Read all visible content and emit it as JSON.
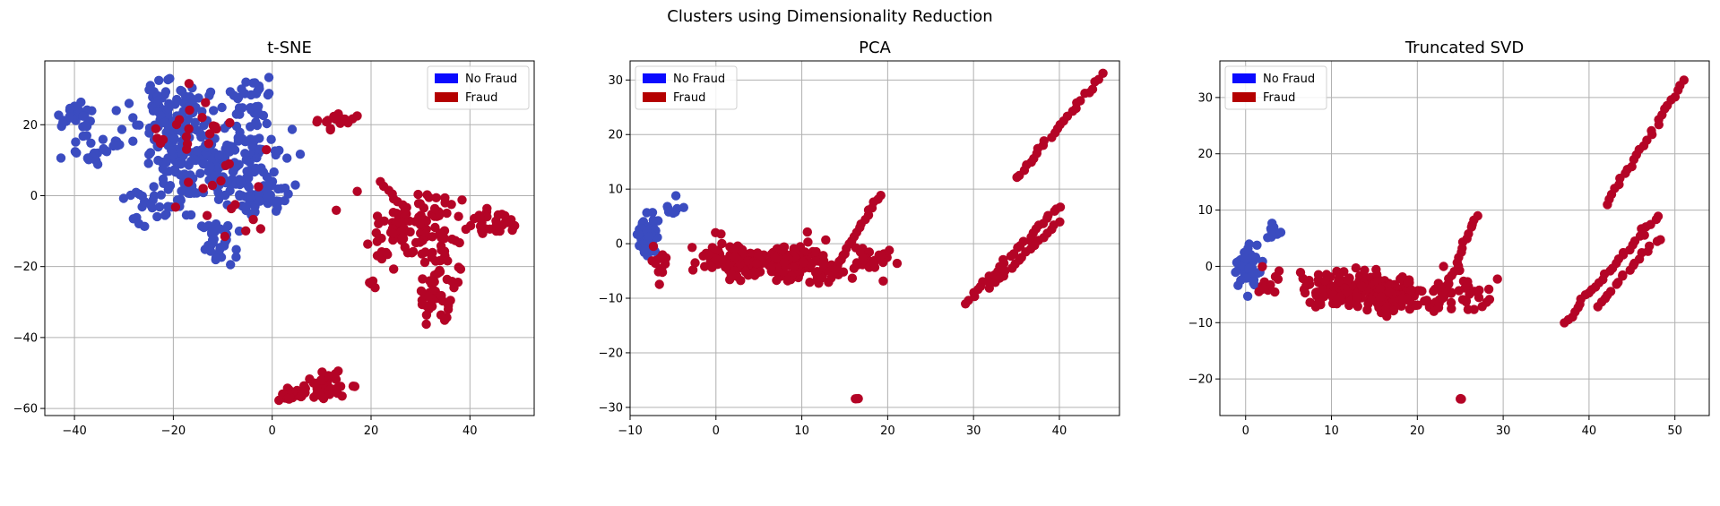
{
  "figure": {
    "suptitle": "Clusters using Dimensionality Reduction"
  },
  "colors": {
    "no_fraud": "#3b4cc0",
    "fraud": "#b40426",
    "legend_no_fraud": "#0a0aff",
    "legend_fraud": "#b40000"
  },
  "chart_data": [
    {
      "type": "scatter",
      "title": "t-SNE",
      "xlabel": "",
      "ylabel": "",
      "xlim": [
        -46,
        53
      ],
      "ylim": [
        -62,
        38
      ],
      "xticks": [
        -40,
        -20,
        0,
        20,
        40
      ],
      "yticks": [
        -60,
        -40,
        -20,
        0,
        20
      ],
      "grid": true,
      "legend": {
        "placement": "upper right",
        "entries": [
          "No Fraud",
          "Fraud"
        ]
      },
      "series": [
        {
          "name": "No Fraud",
          "clusters": [
            {
              "cx": -40,
              "cy": 22,
              "sx": 2.0,
              "sy": 2.0,
              "n": 25
            },
            {
              "cx": -35,
              "cy": 13,
              "sx": 2.5,
              "sy": 2.0,
              "n": 25
            },
            {
              "cx": -20,
              "cy": 22,
              "sx": 4.0,
              "sy": 5.0,
              "n": 120
            },
            {
              "cx": -16,
              "cy": 8,
              "sx": 5.0,
              "sy": 5.0,
              "n": 90
            },
            {
              "cx": -6,
              "cy": 10,
              "sx": 4.5,
              "sy": 6.0,
              "n": 90
            },
            {
              "cx": -3,
              "cy": 0,
              "sx": 3.0,
              "sy": 3.0,
              "n": 50
            },
            {
              "cx": -4,
              "cy": 27,
              "sx": 3.0,
              "sy": 3.0,
              "n": 30
            },
            {
              "cx": -11,
              "cy": -13,
              "sx": 2.0,
              "sy": 3.0,
              "n": 35
            },
            {
              "cx": -23,
              "cy": -2,
              "sx": 3.0,
              "sy": 3.0,
              "n": 30
            }
          ]
        },
        {
          "name": "Fraud",
          "clusters": [
            {
              "cx": -17,
              "cy": 20,
              "sx": 6.0,
              "sy": 6.0,
              "n": 22
            },
            {
              "cx": -8,
              "cy": 0,
              "sx": 5.0,
              "sy": 6.0,
              "n": 14
            },
            {
              "cx": 13,
              "cy": 21,
              "sx": 2.5,
              "sy": 1.2,
              "n": 18
            },
            {
              "cx": 30,
              "cy": -8,
              "sx": 5.0,
              "sy": 5.0,
              "n": 90
            },
            {
              "cx": 44,
              "cy": -7,
              "sx": 2.5,
              "sy": 2.0,
              "n": 30
            },
            {
              "cx": 33,
              "cy": -27,
              "sx": 2.5,
              "sy": 5.0,
              "n": 45
            },
            {
              "cx": 23,
              "cy": -13,
              "sx": 2.5,
              "sy": 3.0,
              "n": 20
            },
            {
              "cx": 4,
              "cy": -56,
              "sx": 1.3,
              "sy": 0.8,
              "n": 35
            },
            {
              "cx": 11,
              "cy": -53,
              "sx": 2.5,
              "sy": 2.0,
              "n": 35
            },
            {
              "cx": 20,
              "cy": -25,
              "sx": 0.5,
              "sy": 0.5,
              "n": 4
            }
          ],
          "lines": [
            {
              "x0": 22,
              "y0": 4,
              "x1": 27,
              "y1": -4,
              "n": 8
            }
          ]
        }
      ]
    },
    {
      "type": "scatter",
      "title": "PCA",
      "xlabel": "",
      "ylabel": "",
      "xlim": [
        -10,
        47
      ],
      "ylim": [
        -31.5,
        33.5
      ],
      "xticks": [
        -10,
        0,
        10,
        20,
        30,
        40
      ],
      "yticks": [
        -30,
        -20,
        -10,
        0,
        10,
        20,
        30
      ],
      "grid": true,
      "legend": {
        "placement": "upper left",
        "entries": [
          "No Fraud",
          "Fraud"
        ]
      },
      "series": [
        {
          "name": "No Fraud",
          "clusters": [
            {
              "cx": -8,
              "cy": 1.5,
              "sx": 0.5,
              "sy": 1.8,
              "n": 70
            },
            {
              "cx": -5,
              "cy": 7,
              "sx": 0.8,
              "sy": 1.5,
              "n": 8
            }
          ]
        },
        {
          "name": "Fraud",
          "clusters": [
            {
              "cx": -6.5,
              "cy": -3,
              "sx": 0.6,
              "sy": 1.5,
              "n": 12
            },
            {
              "cx": 3,
              "cy": -2.5,
              "sx": 2.5,
              "sy": 1.6,
              "n": 120
            },
            {
              "cx": 9,
              "cy": -3.5,
              "sx": 2.5,
              "sy": 1.6,
              "n": 120
            },
            {
              "cx": 18,
              "cy": -3,
              "sx": 1.5,
              "sy": 1.6,
              "n": 30
            },
            {
              "cx": 16.5,
              "cy": -28.5,
              "sx": 0.1,
              "sy": 0.1,
              "n": 3
            }
          ],
          "lines": [
            {
              "x0": 13,
              "y0": -7,
              "x1": 19,
              "y1": 9,
              "n": 22
            },
            {
              "x0": 35,
              "y0": 12,
              "x1": 45,
              "y1": 31,
              "n": 26
            },
            {
              "x0": 29,
              "y0": -11,
              "x1": 40,
              "y1": 7,
              "n": 30
            },
            {
              "x0": 32,
              "y0": -8,
              "x1": 40,
              "y1": 4,
              "n": 18
            }
          ]
        }
      ]
    },
    {
      "type": "scatter",
      "title": "Truncated SVD",
      "xlabel": "",
      "ylabel": "",
      "xlim": [
        -3,
        54
      ],
      "ylim": [
        -26.5,
        36.5
      ],
      "xticks": [
        0,
        10,
        20,
        30,
        40,
        50
      ],
      "yticks": [
        -20,
        -10,
        0,
        10,
        20,
        30
      ],
      "grid": true,
      "legend": {
        "placement": "upper left",
        "entries": [
          "No Fraud",
          "Fraud"
        ]
      },
      "series": [
        {
          "name": "No Fraud",
          "clusters": [
            {
              "cx": 0.3,
              "cy": 0,
              "sx": 0.6,
              "sy": 1.8,
              "n": 70
            },
            {
              "cx": 3,
              "cy": 7,
              "sx": 0.6,
              "sy": 1.5,
              "n": 8
            }
          ]
        },
        {
          "name": "Fraud",
          "clusters": [
            {
              "cx": 2.5,
              "cy": -3.5,
              "sx": 0.8,
              "sy": 1.5,
              "n": 12
            },
            {
              "cx": 11,
              "cy": -4,
              "sx": 2.5,
              "sy": 1.6,
              "n": 120
            },
            {
              "cx": 17,
              "cy": -5,
              "sx": 2.5,
              "sy": 1.6,
              "n": 120
            },
            {
              "cx": 25,
              "cy": -5,
              "sx": 1.5,
              "sy": 1.6,
              "n": 30
            },
            {
              "cx": 25,
              "cy": -23.5,
              "sx": 0.1,
              "sy": 0.1,
              "n": 3
            }
          ],
          "lines": [
            {
              "x0": 22,
              "y0": -8,
              "x1": 27,
              "y1": 9,
              "n": 22
            },
            {
              "x0": 42,
              "y0": 11,
              "x1": 51,
              "y1": 33,
              "n": 26
            },
            {
              "x0": 37,
              "y0": -10,
              "x1": 48,
              "y1": 9,
              "n": 30
            },
            {
              "x0": 41,
              "y0": -7,
              "x1": 48,
              "y1": 5,
              "n": 18
            }
          ]
        }
      ]
    }
  ]
}
